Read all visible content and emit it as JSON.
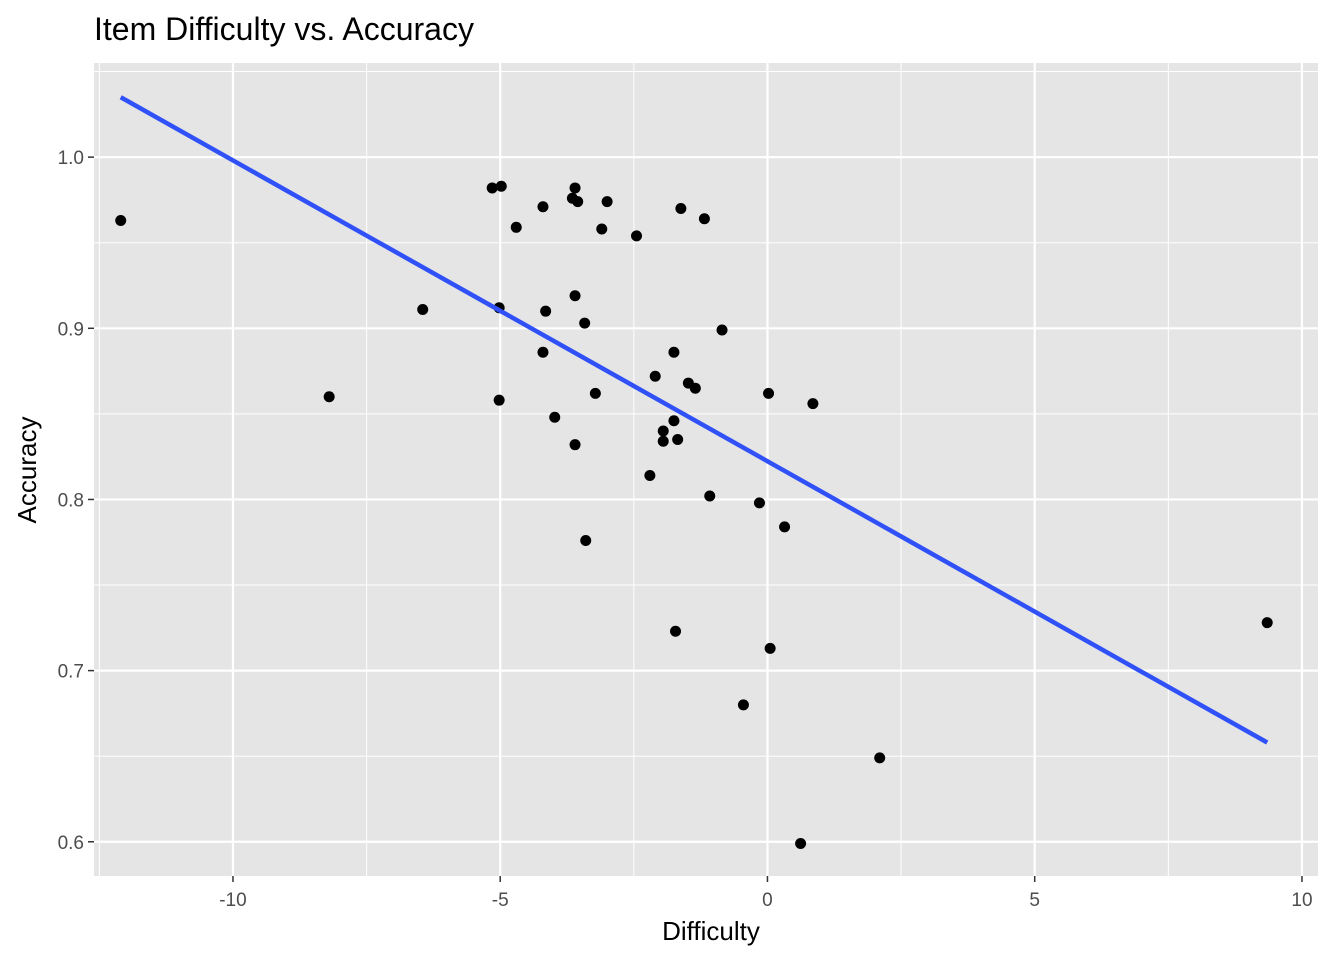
{
  "chart_data": {
    "type": "scatter",
    "title": "Item Difficulty vs. Accuracy",
    "xlabel": "Difficulty",
    "ylabel": "Accuracy",
    "xlim": [
      -12.6,
      10.3
    ],
    "ylim": [
      0.58,
      1.055
    ],
    "x_ticks": [
      -10,
      -5,
      0,
      5,
      10
    ],
    "x_tick_labels": [
      "-10",
      "-5",
      "0",
      "5",
      "10"
    ],
    "y_ticks": [
      0.6,
      0.7,
      0.8,
      0.9,
      1.0
    ],
    "y_tick_labels": [
      "0.6",
      "0.7",
      "0.8",
      "0.9",
      "1.0"
    ],
    "x_minor_ticks": [
      -12.5,
      -7.5,
      -2.5,
      2.5,
      7.5
    ],
    "y_minor_ticks": [
      0.65,
      0.75,
      0.85,
      0.95,
      1.05
    ],
    "grid": true,
    "legend": "none",
    "colors": {
      "panel_background": "#e5e5e5",
      "grid": "#ffffff",
      "points": "#000000",
      "fit_line": "#3050f8"
    },
    "points": [
      {
        "x": -12.1,
        "y": 0.963
      },
      {
        "x": -8.2,
        "y": 0.86
      },
      {
        "x": -6.45,
        "y": 0.911
      },
      {
        "x": -5.15,
        "y": 0.982
      },
      {
        "x": -4.98,
        "y": 0.983
      },
      {
        "x": -5.02,
        "y": 0.912
      },
      {
        "x": -5.02,
        "y": 0.858
      },
      {
        "x": -4.7,
        "y": 0.959
      },
      {
        "x": -4.2,
        "y": 0.971
      },
      {
        "x": -4.15,
        "y": 0.91
      },
      {
        "x": -4.2,
        "y": 0.886
      },
      {
        "x": -3.98,
        "y": 0.848
      },
      {
        "x": -3.6,
        "y": 0.982
      },
      {
        "x": -3.65,
        "y": 0.976
      },
      {
        "x": -3.55,
        "y": 0.974
      },
      {
        "x": -3.6,
        "y": 0.919
      },
      {
        "x": -3.42,
        "y": 0.903
      },
      {
        "x": -3.6,
        "y": 0.832
      },
      {
        "x": -3.4,
        "y": 0.776
      },
      {
        "x": -3.0,
        "y": 0.974
      },
      {
        "x": -3.1,
        "y": 0.958
      },
      {
        "x": -3.22,
        "y": 0.862
      },
      {
        "x": -2.45,
        "y": 0.954
      },
      {
        "x": -2.1,
        "y": 0.872
      },
      {
        "x": -2.2,
        "y": 0.814
      },
      {
        "x": -1.95,
        "y": 0.84
      },
      {
        "x": -1.95,
        "y": 0.834
      },
      {
        "x": -1.75,
        "y": 0.886
      },
      {
        "x": -1.75,
        "y": 0.846
      },
      {
        "x": -1.68,
        "y": 0.835
      },
      {
        "x": -1.72,
        "y": 0.723
      },
      {
        "x": -1.62,
        "y": 0.97
      },
      {
        "x": -1.48,
        "y": 0.868
      },
      {
        "x": -1.35,
        "y": 0.865
      },
      {
        "x": -1.18,
        "y": 0.964
      },
      {
        "x": -1.08,
        "y": 0.802
      },
      {
        "x": -0.85,
        "y": 0.899
      },
      {
        "x": -0.45,
        "y": 0.68
      },
      {
        "x": -0.15,
        "y": 0.798
      },
      {
        "x": 0.02,
        "y": 0.862
      },
      {
        "x": 0.05,
        "y": 0.713
      },
      {
        "x": 0.32,
        "y": 0.784
      },
      {
        "x": 0.85,
        "y": 0.856
      },
      {
        "x": 0.62,
        "y": 0.599
      },
      {
        "x": 2.1,
        "y": 0.649
      },
      {
        "x": 9.35,
        "y": 0.728
      }
    ],
    "fit_line": {
      "x": [
        -12.1,
        9.35
      ],
      "y": [
        1.035,
        0.658
      ]
    }
  }
}
